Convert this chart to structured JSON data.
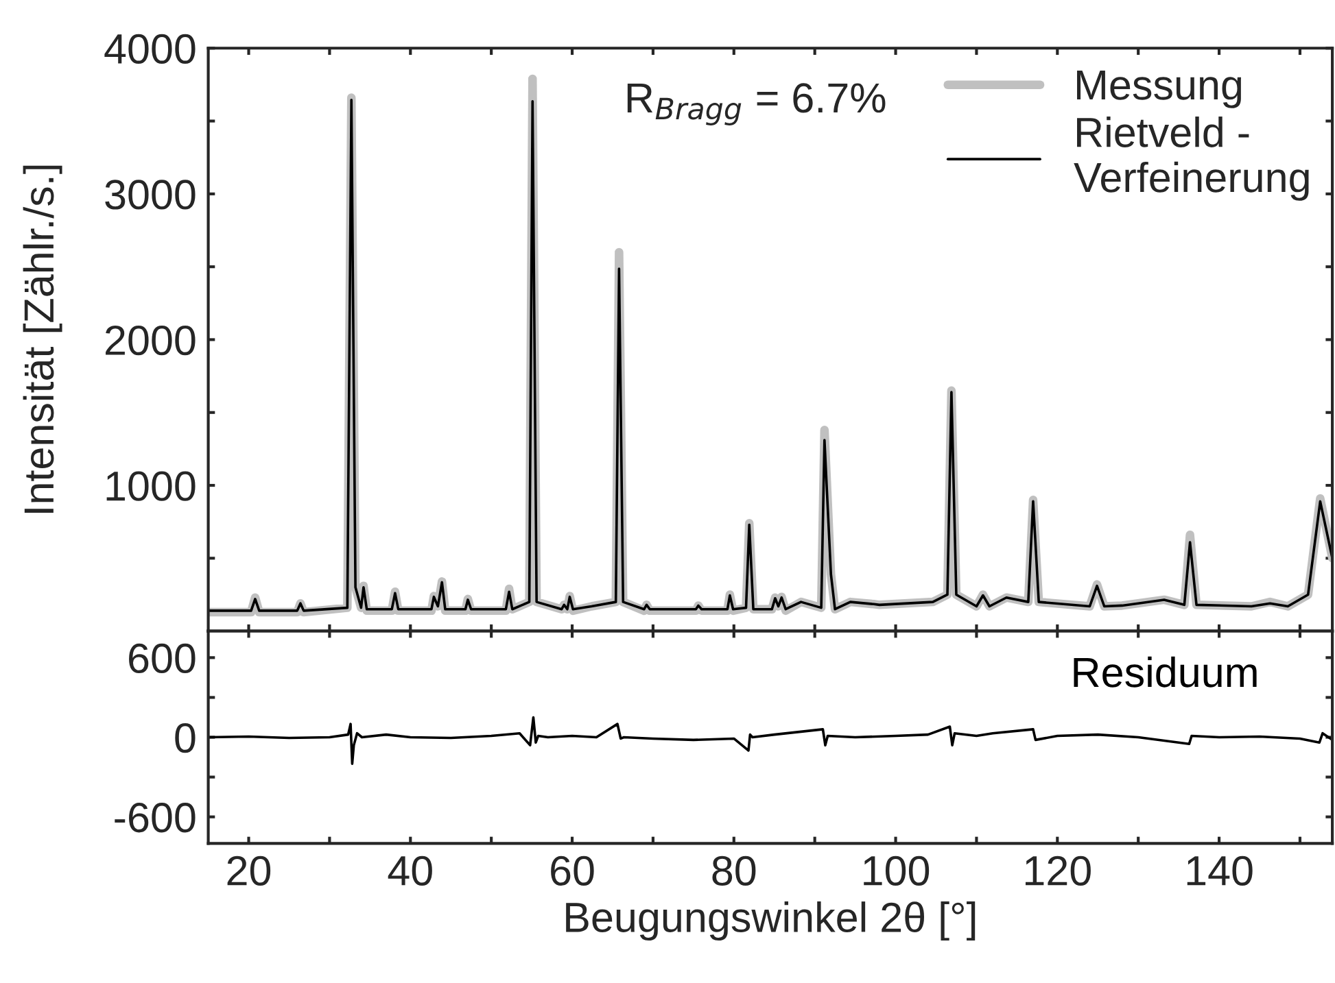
{
  "chart_data": [
    {
      "type": "line",
      "ylabel": "Intensität [Zählr./s.]",
      "xlim": [
        15,
        154
      ],
      "ylim": [
        0,
        4000
      ],
      "xticks": [
        {
          "value": 20,
          "label": null
        },
        {
          "value": 30,
          "label": null
        },
        {
          "value": 40,
          "label": null
        },
        {
          "value": 50,
          "label": null
        },
        {
          "value": 60,
          "label": null
        },
        {
          "value": 70,
          "label": null
        },
        {
          "value": 80,
          "label": null
        },
        {
          "value": 90,
          "label": null
        },
        {
          "value": 100,
          "label": null
        },
        {
          "value": 110,
          "label": null
        },
        {
          "value": 120,
          "label": null
        },
        {
          "value": 130,
          "label": null
        },
        {
          "value": 140,
          "label": null
        },
        {
          "value": 150,
          "label": null
        }
      ],
      "yticks": [
        {
          "value": 500,
          "label": null
        },
        1000,
        {
          "value": 1500,
          "label": null
        },
        2000,
        {
          "value": 2500,
          "label": null
        },
        3000,
        {
          "value": 3500,
          "label": null
        },
        4000
      ],
      "tick_labels": "y",
      "legend": "top right",
      "grid": false,
      "marker": "none",
      "line_style": "solid",
      "annotations": [
        "R$_{Bragg}$ = 6.7%"
      ],
      "series": [
        {
          "name": "Messung",
          "color": "#c0c0c0",
          "x": [
            15,
            20.3,
            20.8,
            21.3,
            26,
            26.4,
            26.8,
            32.2,
            32.7,
            33.2,
            33.9,
            34.2,
            34.6,
            37.7,
            38.1,
            38.5,
            42.6,
            42.9,
            43.4,
            43.9,
            44.3,
            46.8,
            47.1,
            47.5,
            51.8,
            52.2,
            52.6,
            54.7,
            55.1,
            55.6,
            58.7,
            59.0,
            59.4,
            59.7,
            60.1,
            62.4,
            65.4,
            65.8,
            66.3,
            68.9,
            69.2,
            69.6,
            75.3,
            75.6,
            76.0,
            79.2,
            79.5,
            79.9,
            81.5,
            81.9,
            82.4,
            84.7,
            85.1,
            85.5,
            85.9,
            86.4,
            88.3,
            90.8,
            91.2,
            92.0,
            92.5,
            94.4,
            97.3,
            98.0,
            104.6,
            106.4,
            106.9,
            107.5,
            110.0,
            110.8,
            111.6,
            113.7,
            116.4,
            117.0,
            117.7,
            124.0,
            124.9,
            125.8,
            128.0,
            133.2,
            135.7,
            136.4,
            137.2,
            144.0,
            146.3,
            148.5,
            151.0,
            152.5,
            154
          ],
          "values": [
            130,
            130,
            230,
            130,
            130,
            190,
            130,
            160,
            3660,
            300,
            160,
            310,
            140,
            140,
            270,
            140,
            140,
            240,
            170,
            340,
            140,
            140,
            220,
            140,
            140,
            290,
            150,
            200,
            3790,
            200,
            150,
            180,
            150,
            240,
            140,
            170,
            200,
            2600,
            200,
            140,
            180,
            140,
            140,
            175,
            140,
            140,
            250,
            140,
            160,
            740,
            150,
            150,
            230,
            170,
            235,
            140,
            200,
            160,
            1380,
            390,
            150,
            200,
            185,
            180,
            200,
            250,
            1650,
            250,
            170,
            250,
            170,
            230,
            200,
            900,
            200,
            170,
            320,
            170,
            175,
            215,
            180,
            660,
            180,
            170,
            200,
            170,
            250,
            910,
            500
          ]
        },
        {
          "name": "Rietveld -\nVerfeinerung",
          "color": "#000000",
          "x": [
            15,
            20.3,
            20.8,
            21.3,
            26,
            26.4,
            26.8,
            32.2,
            32.7,
            33.2,
            33.9,
            34.2,
            34.6,
            37.7,
            38.1,
            38.5,
            42.6,
            42.9,
            43.4,
            43.9,
            44.3,
            46.8,
            47.1,
            47.5,
            51.8,
            52.2,
            52.6,
            54.7,
            55.1,
            55.6,
            58.7,
            59.0,
            59.4,
            59.7,
            60.1,
            62.4,
            65.4,
            65.8,
            66.3,
            68.9,
            69.2,
            69.6,
            75.3,
            75.6,
            76.0,
            79.2,
            79.5,
            79.9,
            81.5,
            81.9,
            82.4,
            84.7,
            85.1,
            85.5,
            85.9,
            86.4,
            88.3,
            90.8,
            91.2,
            92.0,
            92.5,
            94.4,
            97.3,
            98.0,
            104.6,
            106.4,
            106.9,
            107.5,
            110.0,
            110.8,
            111.6,
            113.7,
            116.4,
            117.0,
            117.7,
            124.0,
            124.9,
            125.8,
            128.0,
            133.2,
            135.7,
            136.4,
            137.2,
            144.0,
            146.3,
            148.5,
            151.0,
            152.5,
            154
          ],
          "values": [
            140,
            140,
            220,
            140,
            140,
            190,
            140,
            160,
            3645,
            300,
            160,
            300,
            150,
            150,
            260,
            150,
            150,
            235,
            170,
            335,
            150,
            150,
            215,
            150,
            150,
            270,
            150,
            200,
            3635,
            200,
            150,
            180,
            150,
            235,
            150,
            170,
            200,
            2486,
            200,
            150,
            180,
            150,
            150,
            175,
            150,
            150,
            245,
            150,
            160,
            730,
            150,
            150,
            225,
            170,
            230,
            150,
            200,
            160,
            1310,
            390,
            150,
            200,
            185,
            180,
            200,
            250,
            1640,
            250,
            170,
            245,
            170,
            230,
            200,
            890,
            200,
            170,
            310,
            170,
            175,
            215,
            180,
            610,
            180,
            170,
            190,
            170,
            250,
            890,
            500
          ]
        }
      ]
    },
    {
      "type": "line",
      "xlabel": "Beugungswinkel 2θ [°]",
      "xlim": [
        15,
        154
      ],
      "ylim": [
        -800,
        800
      ],
      "xticks": [
        20,
        {
          "value": 30,
          "label": null
        },
        40,
        {
          "value": 50,
          "label": null
        },
        60,
        {
          "value": 70,
          "label": null
        },
        80,
        {
          "value": 90,
          "label": null
        },
        100,
        {
          "value": 110,
          "label": null
        },
        120,
        {
          "value": 130,
          "label": null
        },
        140,
        {
          "value": 150,
          "label": null
        }
      ],
      "yticks": [
        -600,
        {
          "value": -300,
          "label": null
        },
        0,
        {
          "value": 300,
          "label": null
        },
        600
      ],
      "grid": false,
      "marker": "none",
      "line_style": "solid",
      "series": [
        {
          "name": "Residuum",
          "color": "#000000",
          "x": [
            15,
            20,
            25,
            30,
            32.3,
            32.6,
            32.8,
            33.0,
            33.4,
            34,
            37,
            40,
            45,
            50,
            53.5,
            54.8,
            55.2,
            55.5,
            55.8,
            57,
            60,
            63,
            65.6,
            66.0,
            66.4,
            70,
            75,
            80,
            81.8,
            82.0,
            82.3,
            85,
            91.0,
            91.3,
            91.6,
            95,
            100,
            104,
            106.7,
            107.0,
            107.3,
            110,
            112,
            117.0,
            117.3,
            120,
            125,
            130,
            136.3,
            136.6,
            140,
            145,
            150,
            152.4,
            152.8,
            154
          ],
          "values": [
            0,
            5,
            -5,
            0,
            20,
            100,
            -200,
            -60,
            30,
            0,
            20,
            0,
            -5,
            10,
            30,
            -60,
            150,
            -40,
            10,
            0,
            10,
            0,
            100,
            -10,
            0,
            -10,
            -20,
            -10,
            -100,
            20,
            0,
            20,
            60,
            -60,
            10,
            0,
            10,
            20,
            80,
            -60,
            30,
            10,
            30,
            60,
            -20,
            10,
            20,
            0,
            -50,
            10,
            0,
            5,
            -10,
            -40,
            30,
            -20
          ]
        }
      ]
    }
  ]
}
